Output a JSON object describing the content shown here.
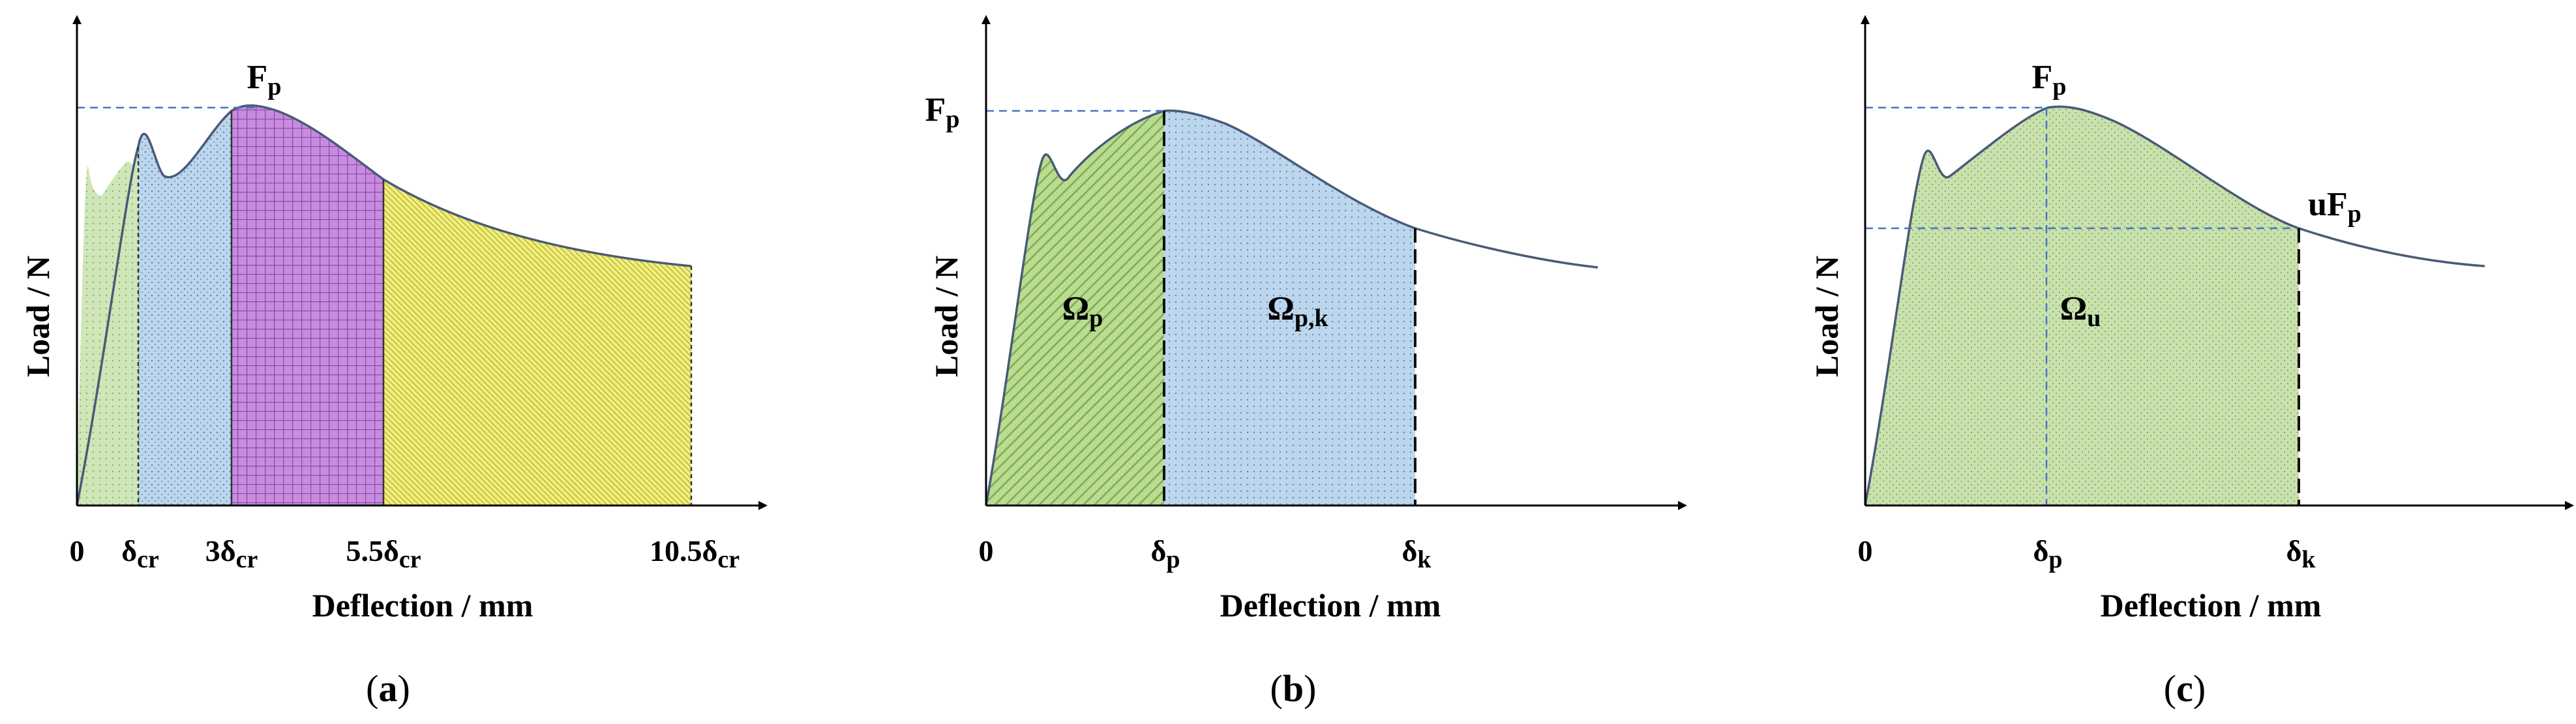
{
  "panels": [
    {
      "id": "a",
      "caption_open": "(",
      "caption_letter": "a",
      "caption_close": ")",
      "xlabel": "Deflection / mm",
      "ylabel": "Load / N",
      "ticks": [
        {
          "main": "0",
          "sub": ""
        },
        {
          "main": "δ",
          "sub": "cr"
        },
        {
          "main": "3δ",
          "sub": "cr"
        },
        {
          "main": "5.5δ",
          "sub": "cr"
        },
        {
          "main": "10.5δ",
          "sub": "cr"
        }
      ],
      "annotations": [
        {
          "main": "F",
          "sub": "p"
        }
      ],
      "region_colors": [
        "#cfe6b8",
        "#bcd6ee",
        "#c98be0",
        "#f2ef7a"
      ]
    },
    {
      "id": "b",
      "caption_open": "(",
      "caption_letter": "b",
      "caption_close": ")",
      "xlabel": "Deflection / mm",
      "ylabel": "Load / N",
      "ticks": [
        {
          "main": "0",
          "sub": ""
        },
        {
          "main": "δ",
          "sub": "p"
        },
        {
          "main": "δ",
          "sub": "k"
        }
      ],
      "annotations": [
        {
          "main": "F",
          "sub": "p"
        },
        {
          "main": "Ω",
          "sub": "p"
        },
        {
          "main": "Ω",
          "sub": "p,k"
        }
      ],
      "region_colors": [
        "#b9dc8e",
        "#bcd6ee"
      ]
    },
    {
      "id": "c",
      "caption_open": "(",
      "caption_letter": "c",
      "caption_close": ")",
      "xlabel": "Deflection / mm",
      "ylabel": "Load / N",
      "ticks": [
        {
          "main": "0",
          "sub": ""
        },
        {
          "main": "δ",
          "sub": "p"
        },
        {
          "main": "δ",
          "sub": "k"
        }
      ],
      "annotations": [
        {
          "main": "F",
          "sub": "p"
        },
        {
          "main": "uF",
          "sub": "p"
        },
        {
          "main": "Ω",
          "sub": "u"
        }
      ],
      "region_colors": [
        "#c9e2ad"
      ]
    }
  ],
  "colors": {
    "curve": "#4a5a78",
    "guide": "#4a72c4"
  }
}
